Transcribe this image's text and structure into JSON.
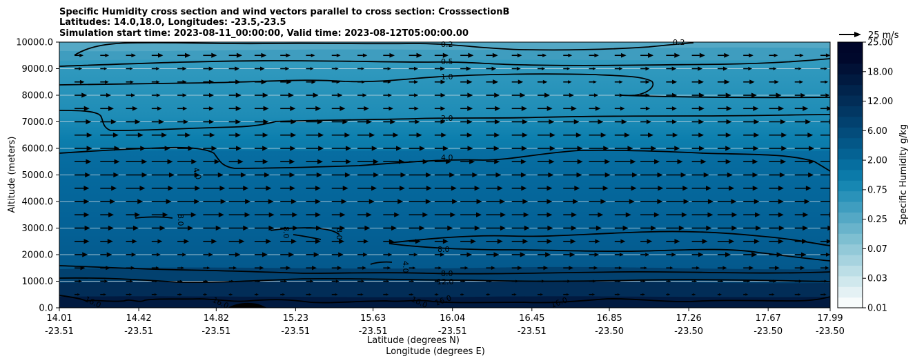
{
  "chart_data": {
    "type": "contour",
    "title_lines": [
      "Specific Humidity cross section and wind vectors parallel to cross section: CrosssectionB",
      "Latitudes: 14.0,18.0, Longitudes: -23.5,-23.5",
      "Simulation start time: 2023-08-11_00:00:00, Valid time: 2023-08-12T05:00:00.00"
    ],
    "ylabel": "Altitude (meters)",
    "xlabel_lines": [
      "Latitude (degrees N)",
      "Longitude (degrees E)"
    ],
    "ylim": [
      0,
      10000
    ],
    "y_ticks": [
      "0.0",
      "1000.0",
      "2000.0",
      "3000.0",
      "4000.0",
      "5000.0",
      "6000.0",
      "7000.0",
      "8000.0",
      "9000.0",
      "10000.0"
    ],
    "y_tick_values": [
      0,
      1000,
      2000,
      3000,
      4000,
      5000,
      6000,
      7000,
      8000,
      9000,
      10000
    ],
    "x_positions": [
      0,
      0.41,
      0.81,
      1.22,
      1.62,
      2.03,
      2.44,
      2.84,
      3.25,
      3.66,
      3.98
    ],
    "x_range": [
      0,
      3.98
    ],
    "x_ticks_lat": [
      "14.01",
      "14.42",
      "14.82",
      "15.23",
      "15.63",
      "16.04",
      "16.45",
      "16.85",
      "17.26",
      "17.67",
      "17.99"
    ],
    "x_ticks_lon": [
      "-23.51",
      "-23.51",
      "-23.51",
      "-23.51",
      "-23.51",
      "-23.51",
      "-23.51",
      "-23.50",
      "-23.50",
      "-23.50",
      "-23.50"
    ],
    "colorbar": {
      "label": "Specific Humidity g/kg",
      "tick_labels": [
        "0.01",
        "0.03",
        "0.07",
        "0.25",
        "0.75",
        "2.00",
        "6.00",
        "12.00",
        "18.00",
        "25.00"
      ],
      "colors": [
        "#f7fbfb",
        "#e4f1f4",
        "#d0e8ed",
        "#bcdee6",
        "#a7d3df",
        "#93c9d8",
        "#7ebfd1",
        "#69b3cb",
        "#54a8c5",
        "#3f9dbf",
        "#2a92b9",
        "#1787b2",
        "#0b7aa9",
        "#066e9f",
        "#046293",
        "#035787",
        "#034c7b",
        "#02416f",
        "#023763",
        "#022d57",
        "#01244c",
        "#011a40",
        "#011136",
        "#00082c",
        "#00062a"
      ]
    },
    "contour_labels": [
      "0.2",
      "0.2",
      "0.5",
      "1.0",
      "2.0",
      "4.0",
      "4.0",
      "8.0",
      "8.0",
      "8.0",
      "8.0",
      "4.0",
      "8.0",
      "12.0",
      "16.0",
      "16.0",
      "16.0",
      "16.0",
      "16.0"
    ],
    "quiver_key": "25 m/s",
    "quiver_key_speed": 25,
    "wind_profile": [
      {
        "z": 500,
        "u": 4
      },
      {
        "z": 1000,
        "u": 5
      },
      {
        "z": 1500,
        "u": 7
      },
      {
        "z": 2000,
        "u": 9
      },
      {
        "z": 2500,
        "u": 11
      },
      {
        "z": 3000,
        "u": 13
      },
      {
        "z": 3500,
        "u": 14
      },
      {
        "z": 4000,
        "u": 15
      },
      {
        "z": 4500,
        "u": 15
      },
      {
        "z": 5000,
        "u": 15
      },
      {
        "z": 5500,
        "u": 14
      },
      {
        "z": 6000,
        "u": 13
      },
      {
        "z": 6500,
        "u": 12
      },
      {
        "z": 7000,
        "u": 11
      },
      {
        "z": 7500,
        "u": 10
      },
      {
        "z": 8000,
        "u": 9
      },
      {
        "z": 8500,
        "u": 8
      },
      {
        "z": 9000,
        "u": 7
      },
      {
        "z": 9500,
        "u": 9
      }
    ]
  }
}
